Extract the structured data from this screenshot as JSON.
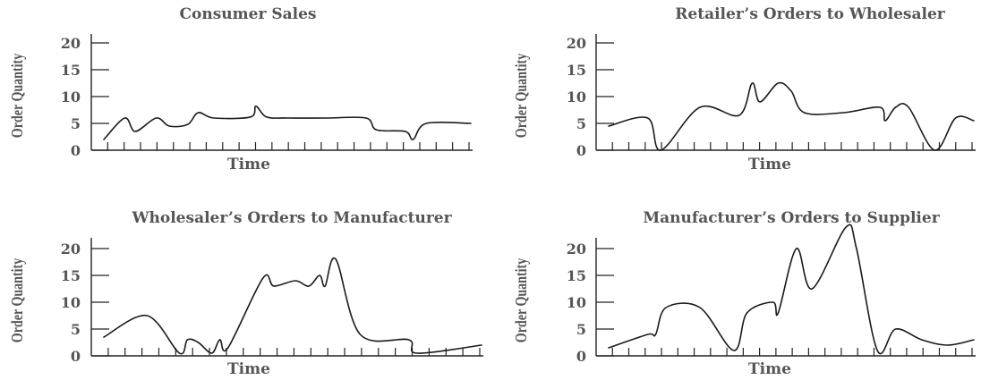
{
  "chart_data": [
    {
      "type": "line",
      "title": "Consumer Sales",
      "xlabel": "Time",
      "ylabel": "Order Quantity",
      "yticks": [
        0,
        5,
        10,
        15,
        20
      ],
      "ylim": [
        0,
        20
      ],
      "xlim": [
        0,
        14
      ],
      "grid": false,
      "series": [
        {
          "x": [
            0,
            0.8,
            1.2,
            2,
            2.5,
            3.2,
            3.6,
            4.2,
            5.6,
            5.8,
            6.2,
            7,
            8.5,
            10,
            10.4,
            11.5,
            11.8,
            12.3,
            14
          ],
          "values": [
            2,
            6,
            3.5,
            6,
            4.5,
            4.8,
            7,
            6,
            6.2,
            8.2,
            6.2,
            6,
            6,
            6,
            3.8,
            3.5,
            2,
            5,
            5
          ]
        }
      ]
    },
    {
      "type": "line",
      "title": "Retailer’s Orders to Wholesaler",
      "xlabel": "Time",
      "ylabel": "Order Quantity",
      "yticks": [
        0,
        5,
        10,
        15,
        20
      ],
      "ylim": [
        0,
        20
      ],
      "xlim": [
        0,
        14
      ],
      "grid": false,
      "series": [
        {
          "x": [
            0,
            1.5,
            2,
            3.5,
            5,
            5.5,
            5.8,
            6.5,
            7,
            7.5,
            9,
            10.4,
            10.6,
            11,
            11.5,
            12.5,
            13.3,
            14
          ],
          "values": [
            4.5,
            6,
            0,
            8,
            6.5,
            12.5,
            9,
            12.5,
            11,
            7,
            7,
            8,
            5.5,
            8,
            8,
            0,
            6,
            5.5
          ]
        }
      ]
    },
    {
      "type": "line",
      "title": "Wholesaler’s Orders to Manufacturer",
      "xlabel": "Time",
      "ylabel": "Order Quantity",
      "yticks": [
        0,
        5,
        10,
        15,
        20
      ],
      "ylim": [
        0,
        20
      ],
      "xlim": [
        0,
        14
      ],
      "grid": false,
      "series": [
        {
          "x": [
            0,
            1.6,
            2.8,
            3.1,
            3.5,
            4,
            4.3,
            4.6,
            5.9,
            6.3,
            7.1,
            7.6,
            8,
            8.2,
            8.6,
            9.5,
            11.3,
            11.6,
            14
          ],
          "values": [
            3.5,
            7.5,
            0.5,
            3,
            2.5,
            0.5,
            3,
            1.5,
            14.5,
            13,
            14,
            13,
            15,
            13,
            18,
            4,
            3,
            0.5,
            2
          ]
        }
      ]
    },
    {
      "type": "line",
      "title": "Manufacturer’s Orders to Supplier",
      "xlabel": "Time",
      "ylabel": "Order Quantity",
      "yticks": [
        0,
        5,
        10,
        15,
        20
      ],
      "ylim": [
        0,
        20
      ],
      "xlim": [
        0,
        14
      ],
      "grid": false,
      "series": [
        {
          "x": [
            0,
            1.5,
            1.8,
            2.2,
            3.5,
            4.8,
            5.3,
            6.3,
            6.5,
            7.2,
            7.8,
            9.1,
            9.5,
            10.3,
            11,
            12,
            13,
            14
          ],
          "values": [
            1.5,
            4,
            4,
            9,
            9,
            1,
            8,
            10,
            8,
            20,
            12.5,
            24,
            20,
            1,
            5,
            3,
            2,
            3
          ]
        }
      ]
    }
  ]
}
